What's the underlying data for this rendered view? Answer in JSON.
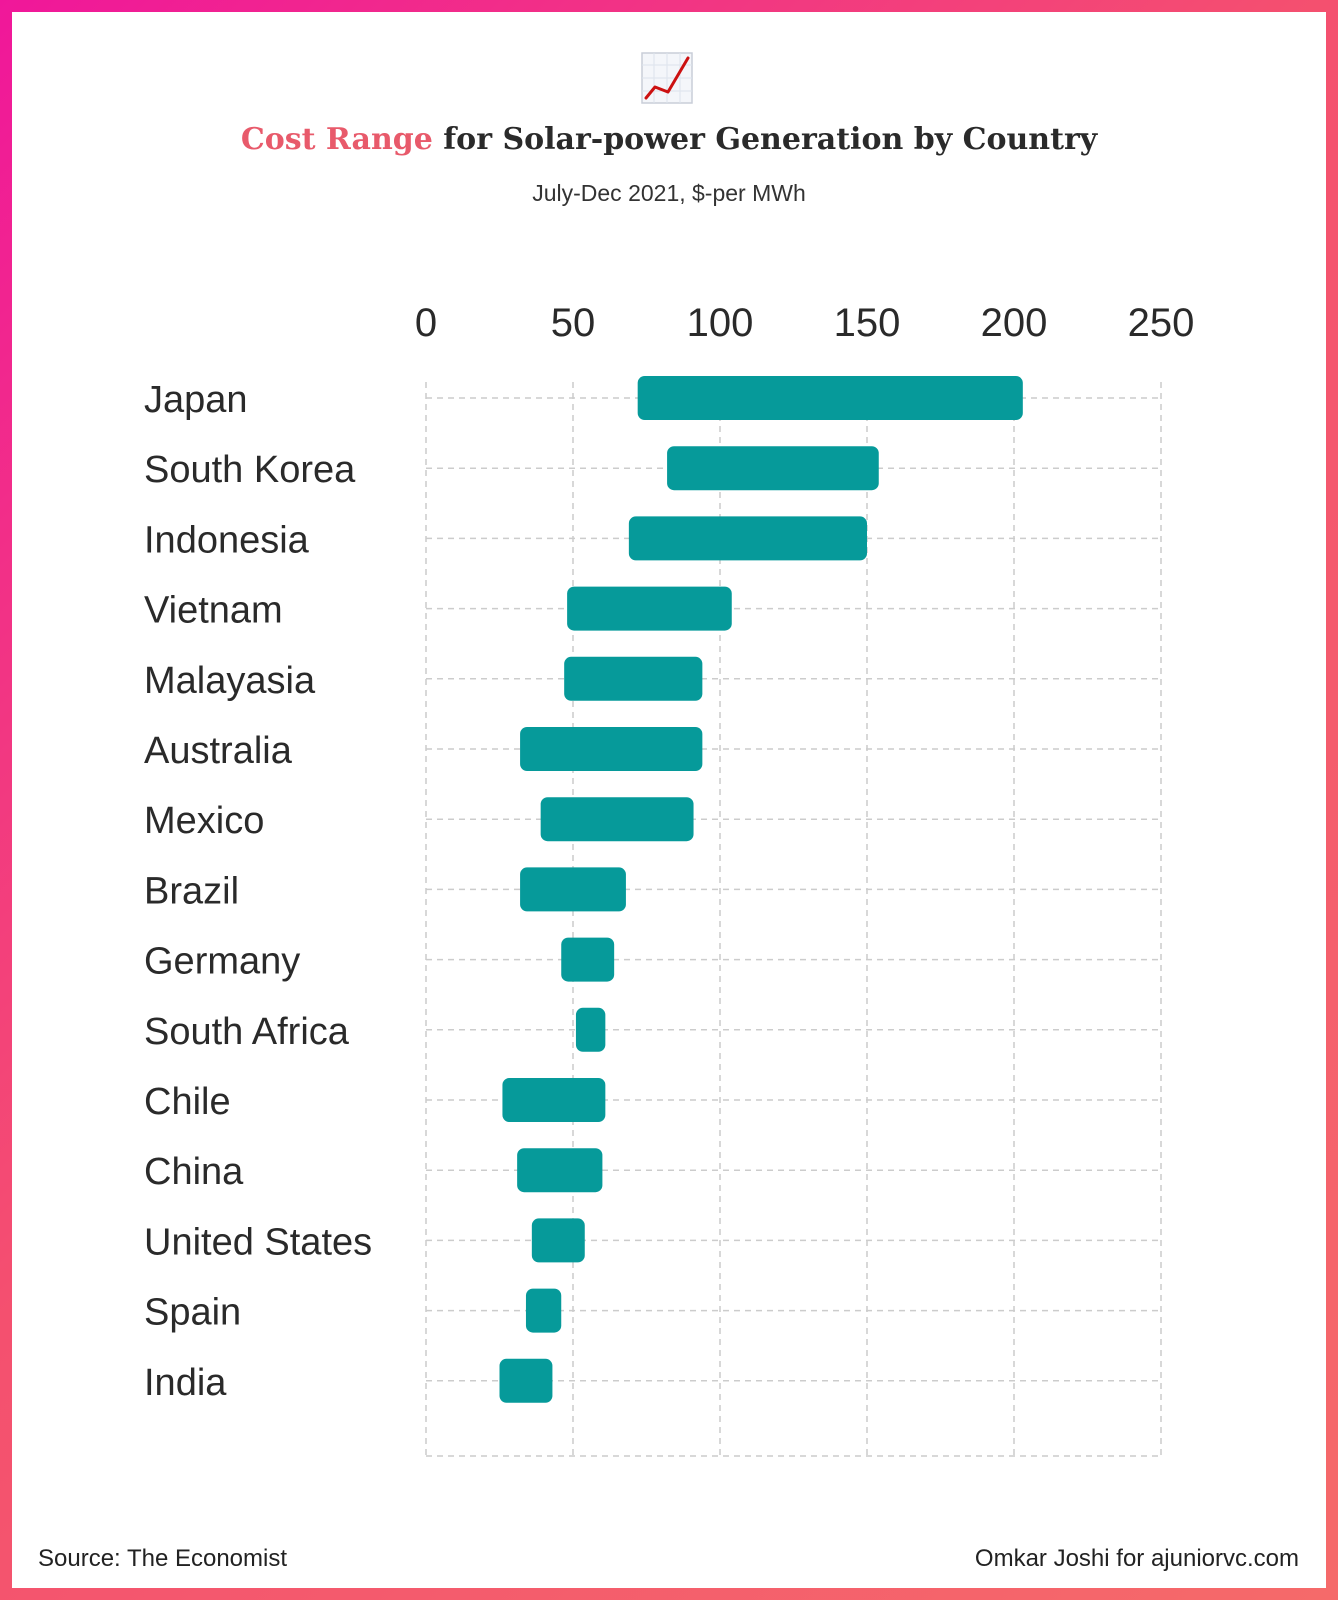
{
  "header": {
    "icon": "chart-increasing-icon",
    "title_highlight": "Cost Range",
    "title_rest": " for Solar-power Generation by Country",
    "subtitle": "July-Dec 2021, $-per MWh"
  },
  "footer": {
    "source": "Source: The Economist",
    "credit": "Omkar Joshi for ajuniorvc.com"
  },
  "colors": {
    "bar": "#069a9a",
    "highlight": "#e85a6b",
    "grid": "#cccccc",
    "text": "#2a2a2a"
  },
  "chart_data": {
    "type": "bar",
    "orientation": "horizontal-range",
    "title": "Cost Range for Solar-power Generation by Country",
    "subtitle": "July-Dec 2021, $-per MWh",
    "xlim": [
      0,
      250
    ],
    "xticks": [
      0,
      50,
      100,
      150,
      200,
      250
    ],
    "grid": true,
    "categories": [
      "Japan",
      "South Korea",
      "Indonesia",
      "Vietnam",
      "Malayasia",
      "Australia",
      "Mexico",
      "Brazil",
      "Germany",
      "South Africa",
      "Chile",
      "China",
      "United States",
      "Spain",
      "India"
    ],
    "series": [
      {
        "name": "min",
        "values": [
          72,
          82,
          69,
          48,
          47,
          32,
          39,
          32,
          46,
          51,
          26,
          31,
          36,
          34,
          25
        ]
      },
      {
        "name": "max",
        "values": [
          203,
          154,
          150,
          104,
          94,
          94,
          91,
          68,
          64,
          61,
          61,
          60,
          54,
          46,
          43
        ]
      }
    ]
  }
}
